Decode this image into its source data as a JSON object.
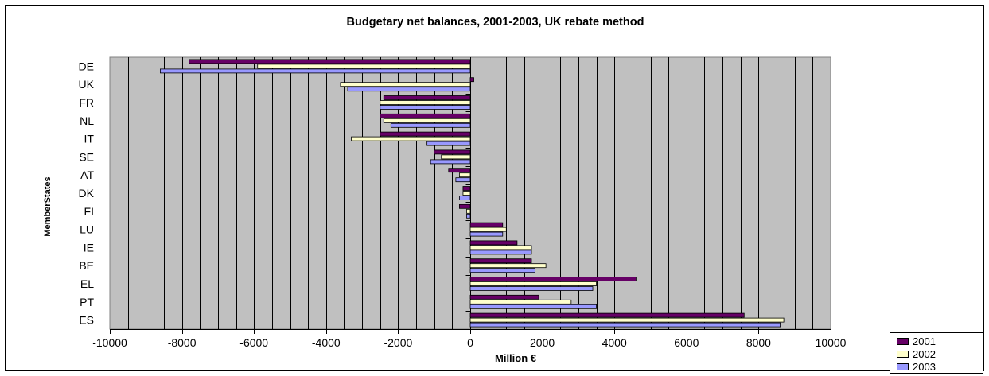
{
  "chart_data": {
    "type": "bar",
    "orientation": "horizontal",
    "title": "Budgetary net balances, 2001-2003, UK rebate method",
    "xlabel": "Million €",
    "ylabel": "MemberStates",
    "categories": [
      "DE",
      "UK",
      "FR",
      "NL",
      "IT",
      "SE",
      "AT",
      "DK",
      "FI",
      "LU",
      "IE",
      "BE",
      "EL",
      "PT",
      "ES"
    ],
    "series": [
      {
        "name": "2001",
        "color": "#660066",
        "values": [
          -7800,
          100,
          -2400,
          -2500,
          -2500,
          -1000,
          -600,
          -200,
          -300,
          900,
          1300,
          1700,
          4600,
          1900,
          7600
        ]
      },
      {
        "name": "2002",
        "color": "#ffffcc",
        "values": [
          -5900,
          -3600,
          -2500,
          -2400,
          -3300,
          -800,
          -300,
          -200,
          -100,
          1000,
          1700,
          2100,
          3500,
          2800,
          8700
        ]
      },
      {
        "name": "2003",
        "color": "#9999ff",
        "values": [
          -8600,
          -3400,
          -2500,
          -2200,
          -1200,
          -1100,
          -400,
          -300,
          -100,
          900,
          1700,
          1800,
          3400,
          3500,
          8600
        ]
      }
    ],
    "xlim": [
      -10000,
      10000
    ],
    "xticks": [
      "-10000",
      "-8000",
      "-6000",
      "-4000",
      "-2000",
      "0",
      "2000",
      "4000",
      "6000",
      "8000",
      "10000"
    ],
    "grid": true,
    "plot_background": "#c0c0c0",
    "legend_position": "bottom-right"
  }
}
